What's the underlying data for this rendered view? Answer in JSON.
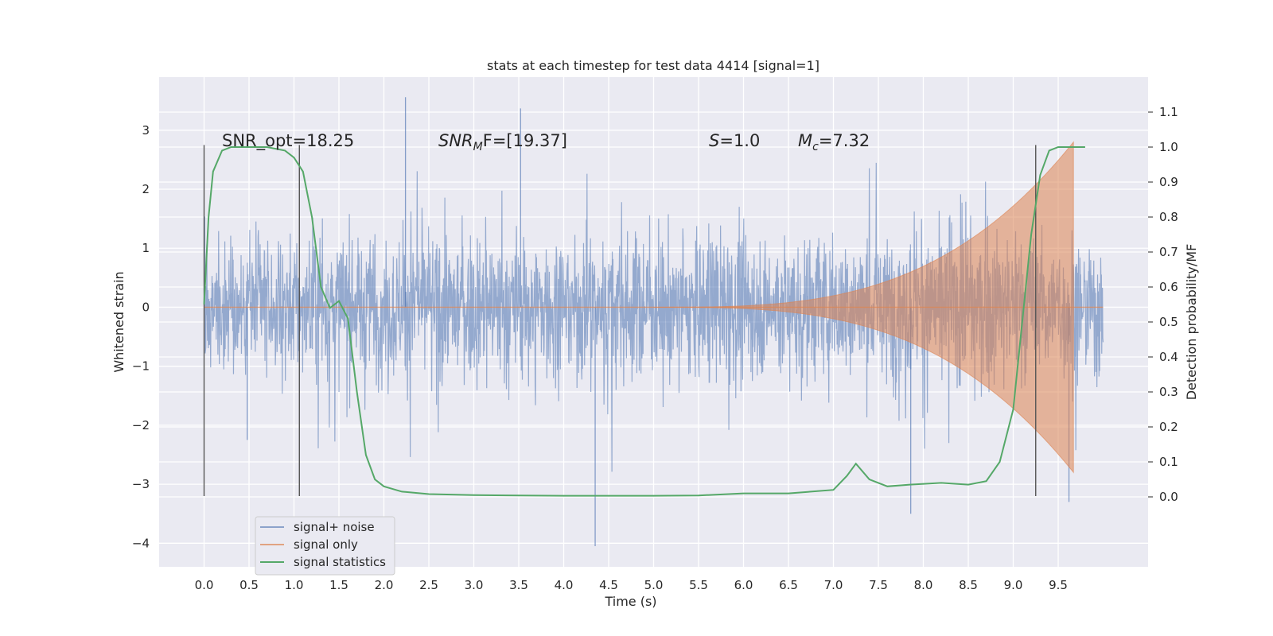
{
  "chart_data": {
    "type": "line",
    "title": "stats at each timestep for test data 4414 [signal=1]",
    "xlabel": "Time (s)",
    "ylabel": "Whitened strain",
    "ylabel_right": "Detection probability/MF",
    "xlim": [
      -0.5,
      10.5
    ],
    "ylim": [
      -4.4,
      3.9
    ],
    "ylim_right": [
      -0.2,
      1.2
    ],
    "xticks": [
      0.0,
      0.5,
      1.0,
      1.5,
      2.0,
      2.5,
      3.0,
      3.5,
      4.0,
      4.5,
      5.0,
      5.5,
      6.0,
      6.5,
      7.0,
      7.5,
      8.0,
      8.5,
      9.0,
      9.5
    ],
    "xtick_labels": [
      "0.0",
      "0.5",
      "1.0",
      "1.5",
      "2.0",
      "2.5",
      "3.0",
      "3.5",
      "4.0",
      "4.5",
      "5.0",
      "5.5",
      "6.0",
      "6.5",
      "7.0",
      "7.5",
      "8.0",
      "8.5",
      "9.0",
      "9.5"
    ],
    "yticks": [
      -4,
      -3,
      -2,
      -1,
      0,
      1,
      2,
      3
    ],
    "ytick_labels": [
      "−4",
      "−3",
      "−2",
      "−1",
      "0",
      "1",
      "2",
      "3"
    ],
    "yticks_right": [
      0.0,
      0.1,
      0.2,
      0.3,
      0.4,
      0.5,
      0.6,
      0.7,
      0.8,
      0.9,
      1.0,
      1.1
    ],
    "ytick_labels_right": [
      "0.0",
      "0.1",
      "0.2",
      "0.3",
      "0.4",
      "0.5",
      "0.6",
      "0.7",
      "0.8",
      "0.9",
      "1.0",
      "1.1"
    ],
    "grid": true,
    "legend_position": "lower-left",
    "annotations": {
      "snr_opt": "SNR_opt=18.25",
      "snr_mf_base": "SNR",
      "snr_mf_sub": "M",
      "snr_mf_rest": "F=[19.37]",
      "s_italic": "S",
      "s_rest": "=1.0",
      "mc_italic": "M",
      "mc_sub": "c",
      "mc_rest": "=7.32"
    },
    "vertical_lines": [
      0.0,
      1.06,
      9.25
    ],
    "vertical_line_range": [
      -3.2,
      2.75
    ],
    "series": [
      {
        "name": "signal+ noise",
        "color": "#4c72b0",
        "t_range": [
          0.0,
          10.0
        ],
        "noise_sigma": 0.95,
        "notable_peaks": [
          [
            2.24,
            3.56
          ],
          [
            3.52,
            3.37
          ],
          [
            4.35,
            -4.05
          ],
          [
            7.86,
            -3.5
          ],
          [
            9.62,
            -3.3
          ],
          [
            0.48,
            -2.25
          ]
        ]
      },
      {
        "name": "signal only",
        "color": "#dd8452",
        "chirp_start": 5.0,
        "chirp_end": 9.67,
        "amplitude_at_end": 2.8
      },
      {
        "name": "signal statistics",
        "color": "#55a868",
        "axis": "right",
        "points": [
          [
            0.0,
            0.55
          ],
          [
            0.05,
            0.8
          ],
          [
            0.1,
            0.93
          ],
          [
            0.2,
            0.99
          ],
          [
            0.3,
            1.0
          ],
          [
            0.5,
            1.0
          ],
          [
            0.7,
            1.0
          ],
          [
            0.9,
            0.99
          ],
          [
            1.0,
            0.97
          ],
          [
            1.1,
            0.93
          ],
          [
            1.2,
            0.8
          ],
          [
            1.3,
            0.6
          ],
          [
            1.4,
            0.54
          ],
          [
            1.5,
            0.56
          ],
          [
            1.6,
            0.51
          ],
          [
            1.7,
            0.3
          ],
          [
            1.8,
            0.12
          ],
          [
            1.9,
            0.05
          ],
          [
            2.0,
            0.03
          ],
          [
            2.2,
            0.015
          ],
          [
            2.5,
            0.008
          ],
          [
            3.0,
            0.005
          ],
          [
            3.5,
            0.004
          ],
          [
            4.0,
            0.003
          ],
          [
            4.5,
            0.003
          ],
          [
            5.0,
            0.003
          ],
          [
            5.5,
            0.004
          ],
          [
            6.0,
            0.01
          ],
          [
            6.5,
            0.01
          ],
          [
            6.75,
            0.015
          ],
          [
            7.0,
            0.02
          ],
          [
            7.15,
            0.06
          ],
          [
            7.25,
            0.095
          ],
          [
            7.4,
            0.05
          ],
          [
            7.6,
            0.03
          ],
          [
            7.85,
            0.035
          ],
          [
            8.2,
            0.04
          ],
          [
            8.5,
            0.035
          ],
          [
            8.7,
            0.045
          ],
          [
            8.85,
            0.1
          ],
          [
            9.0,
            0.25
          ],
          [
            9.1,
            0.5
          ],
          [
            9.2,
            0.75
          ],
          [
            9.3,
            0.92
          ],
          [
            9.4,
            0.99
          ],
          [
            9.5,
            1.0
          ],
          [
            9.8,
            1.0
          ]
        ]
      }
    ]
  }
}
